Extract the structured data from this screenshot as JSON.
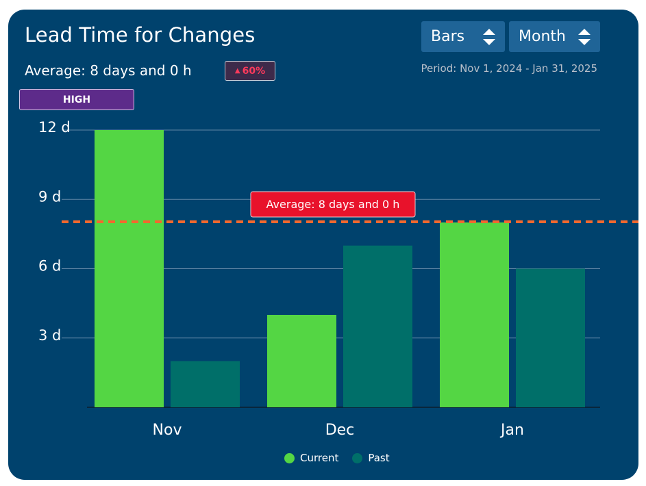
{
  "header": {
    "title": "Lead Time for Changes",
    "average_text": "Average: 8 days and 0 h",
    "change_badge": "60%",
    "change_direction": "up",
    "level_badge": "HIGH",
    "period": "Period: Nov 1, 2024 - Jan 31, 2025"
  },
  "controls": {
    "chart_type_label": "Bars",
    "granularity_label": "Month"
  },
  "colors": {
    "background": "#00426d",
    "current": "#54d644",
    "past": "#006f69",
    "average_line": "#f4682e",
    "average_label_bg": "#e8122b",
    "level_badge": "#5d2b8a",
    "change_text": "#ff3a5c"
  },
  "chart_data": {
    "type": "bar",
    "categories": [
      "Nov",
      "Dec",
      "Jan"
    ],
    "series": [
      {
        "name": "Current",
        "values": [
          12,
          4,
          8
        ]
      },
      {
        "name": "Past",
        "values": [
          2,
          7,
          6
        ]
      }
    ],
    "ylim": [
      0,
      12
    ],
    "yticks": [
      3,
      6,
      9,
      12
    ],
    "ytick_labels": [
      "3 d",
      "6 d",
      "9 d",
      "12 d"
    ],
    "average_line": {
      "value": 8,
      "label": "Average: 8 days and 0 h"
    },
    "legend_position": "bottom-center",
    "grid": true
  }
}
